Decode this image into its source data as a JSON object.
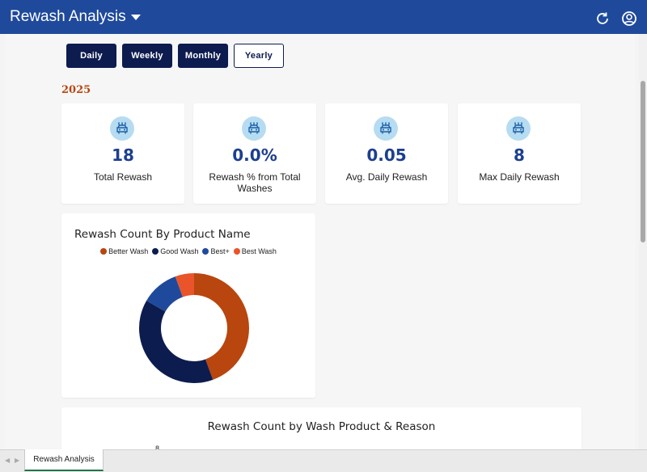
{
  "app": {
    "title": "Rewash Analysis"
  },
  "header": {
    "refresh_icon": "refresh-icon",
    "account_icon": "account-circle-icon"
  },
  "period_tabs": [
    {
      "label": "Daily",
      "active": true
    },
    {
      "label": "Weekly",
      "active": true
    },
    {
      "label": "Monthly",
      "active": true
    },
    {
      "label": "Yearly",
      "active": false
    }
  ],
  "year": "2025",
  "kpis": [
    {
      "value": "18",
      "label": "Total Rewash",
      "icon": "car-wash-icon"
    },
    {
      "value": "0.0%",
      "label": "Rewash % from Total Washes",
      "icon": "car-wash-icon"
    },
    {
      "value": "0.05",
      "label": "Avg. Daily Rewash",
      "icon": "car-wash-icon"
    },
    {
      "value": "8",
      "label": "Max Daily Rewash",
      "icon": "car-wash-icon"
    }
  ],
  "chart_data": [
    {
      "type": "pie",
      "title": "Rewash Count By Product Name",
      "legend_position": "top",
      "categories": [
        "Better Wash",
        "Good Wash",
        "Best+",
        "Best Wash"
      ],
      "values": [
        8,
        7,
        2,
        1
      ],
      "colors": [
        "#b8460e",
        "#0d1c4f",
        "#1f4a9c",
        "#e9542a"
      ]
    },
    {
      "type": "bar",
      "title": "Rewash Count by Wash Product & Reason",
      "y_ticks_visible": [
        "8"
      ]
    }
  ],
  "sheet_tabs": [
    {
      "label": "Rewash Analysis"
    }
  ],
  "colors": {
    "header": "#1f4a9c",
    "accent_dark": "#0d1c4f",
    "year": "#b8460e",
    "kpi_value": "#1c3f8f"
  }
}
